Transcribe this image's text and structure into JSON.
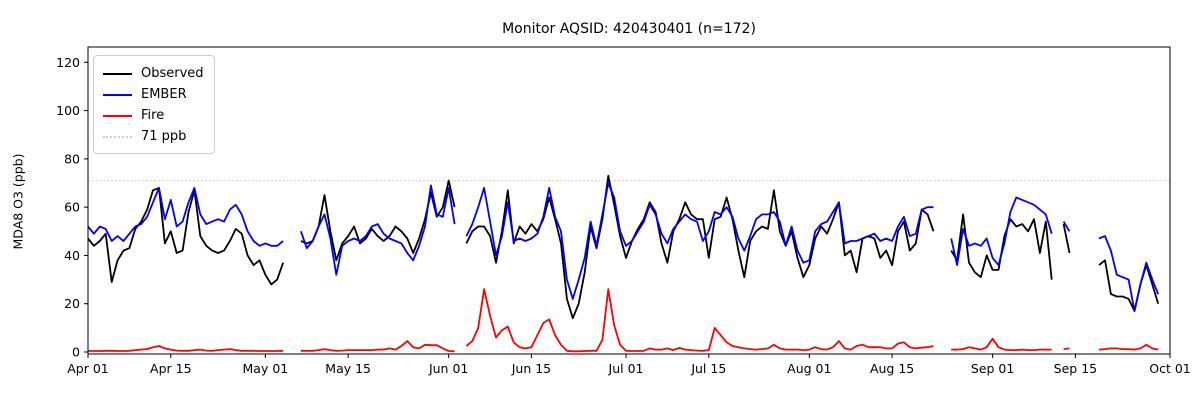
{
  "figure": {
    "title": "Monitor AQSID: 420430401 (n=172)",
    "background": "#ffffff"
  },
  "axes": {
    "ylabel": "MDA8 O3 (ppb)",
    "yticks": [
      0,
      20,
      40,
      60,
      80,
      100,
      120
    ],
    "ylim": [
      0,
      126
    ],
    "xtick_labels": [
      "Apr 01",
      "Apr 15",
      "May 01",
      "May 15",
      "Jun 01",
      "Jun 15",
      "Jul 01",
      "Jul 15",
      "Aug 01",
      "Aug 15",
      "Sep 01",
      "Sep 15",
      "Oct 01"
    ],
    "xtick_days": [
      0,
      14,
      30,
      44,
      61,
      75,
      91,
      105,
      122,
      136,
      153,
      167,
      183
    ],
    "x_domain_days": [
      0,
      183
    ],
    "spine_color": "#000000",
    "tick_label_color": "#000000"
  },
  "legend": {
    "entries": [
      {
        "label": "Observed",
        "color": "#000000",
        "style": "solid"
      },
      {
        "label": "EMBER",
        "color": "#0000ff",
        "style": "solid"
      },
      {
        "label": "Fire",
        "color": "#ff0000",
        "style": "solid"
      },
      {
        "label": "71 ppb",
        "color": "#cfcfcf",
        "style": "dotted"
      }
    ]
  },
  "chart_data": {
    "type": "line",
    "title": "Monitor AQSID: 420430401 (n=172)",
    "xlabel": "",
    "ylabel": "MDA8 O3 (ppb)",
    "x_unit": "day index, 0 = Apr 01, 182 = Sep 30, axis ends Oct 01",
    "start_date": "Apr 01",
    "end_date": "Oct 01",
    "n_shown_in_title": 172,
    "threshold": {
      "label": "71 ppb",
      "value": 71,
      "color": "#cfcfcf",
      "style": "dotted"
    },
    "missing_days": [
      "May 05",
      "May 06",
      "Jun 03",
      "Aug 23",
      "Aug 24",
      "Sep 12",
      "Sep 15",
      "Sep 16",
      "Sep 17",
      "Sep 18",
      "Sep 30"
    ],
    "series": [
      {
        "name": "Observed",
        "color": "#000000",
        "values": [
          47,
          44,
          46,
          49,
          29,
          38,
          42,
          43,
          51,
          54,
          59,
          67,
          68,
          45,
          50,
          41,
          42,
          58,
          67,
          48,
          44,
          42,
          41,
          42,
          46,
          51,
          49,
          40,
          36,
          38,
          32,
          28,
          30,
          37,
          null,
          null,
          46,
          45,
          46,
          52,
          65,
          50,
          38,
          45,
          48,
          52,
          45,
          47,
          51,
          48,
          46,
          48,
          52,
          50,
          47,
          41,
          47,
          55,
          66,
          56,
          60,
          71,
          60,
          null,
          45,
          50,
          52,
          52,
          48,
          37,
          50,
          67,
          45,
          52,
          49,
          53,
          50,
          55,
          64,
          55,
          45,
          22,
          14,
          20,
          33,
          52,
          43,
          55,
          73,
          61,
          48,
          39,
          46,
          51,
          55,
          62,
          58,
          45,
          37,
          50,
          55,
          62,
          57,
          55,
          55,
          39,
          55,
          56,
          64,
          55,
          42,
          31,
          46,
          50,
          52,
          51,
          67,
          50,
          44,
          50,
          39,
          31,
          36,
          47,
          52,
          49,
          55,
          62,
          40,
          42,
          33,
          47,
          48,
          47,
          39,
          42,
          36,
          50,
          54,
          42,
          45,
          59,
          57,
          50,
          null,
          null,
          42,
          38,
          57,
          37,
          33,
          31,
          40,
          34,
          34,
          48,
          55,
          52,
          53,
          50,
          55,
          41,
          54,
          30,
          null,
          53,
          41,
          null,
          null,
          null,
          null,
          36,
          38,
          24,
          23,
          23,
          22,
          17,
          28,
          36,
          28,
          20,
          null
        ]
      },
      {
        "name": "EMBER",
        "color": "#0000ff",
        "values": [
          52,
          49,
          52,
          51,
          46,
          48,
          46,
          49,
          52,
          53,
          56,
          62,
          68,
          55,
          63,
          52,
          54,
          62,
          68,
          57,
          53,
          54,
          55,
          54,
          59,
          61,
          57,
          50,
          46,
          44,
          45,
          44,
          44,
          46,
          null,
          null,
          50,
          43,
          46,
          52,
          57,
          47,
          32,
          44,
          46,
          47,
          46,
          48,
          52,
          53,
          49,
          47,
          46,
          45,
          41,
          38,
          44,
          52,
          69,
          57,
          56,
          68,
          53,
          null,
          48,
          53,
          60,
          68,
          54,
          40,
          48,
          62,
          46,
          47,
          46,
          47,
          49,
          56,
          68,
          56,
          50,
          30,
          22,
          30,
          39,
          54,
          44,
          57,
          70,
          64,
          50,
          44,
          46,
          50,
          54,
          61,
          57,
          49,
          45,
          51,
          54,
          57,
          55,
          54,
          46,
          50,
          58,
          57,
          60,
          56,
          47,
          42,
          48,
          55,
          57,
          57,
          58,
          54,
          44,
          52,
          42,
          37,
          38,
          50,
          53,
          54,
          58,
          62,
          45,
          46,
          46,
          47,
          48,
          49,
          46,
          47,
          46,
          52,
          56,
          48,
          49,
          59,
          60,
          60,
          null,
          null,
          47,
          36,
          51,
          44,
          45,
          44,
          47,
          39,
          36,
          45,
          58,
          64,
          63,
          62,
          61,
          59,
          57,
          49,
          null,
          54,
          50,
          null,
          null,
          null,
          null,
          47,
          48,
          42,
          32,
          31,
          30,
          17,
          28,
          37,
          30,
          24,
          null
        ]
      },
      {
        "name": "Fire",
        "color": "#ff0000",
        "values": [
          0.5,
          0.4,
          0.4,
          0.5,
          0.5,
          0.4,
          0.4,
          0.5,
          0.8,
          1.0,
          1.2,
          2.0,
          2.5,
          1.5,
          1.0,
          0.6,
          0.5,
          0.5,
          0.8,
          1.0,
          0.6,
          0.5,
          0.8,
          1.0,
          1.2,
          0.8,
          0.5,
          0.5,
          0.5,
          0.4,
          0.4,
          0.4,
          0.4,
          0.5,
          null,
          null,
          0.5,
          0.5,
          0.5,
          0.8,
          1.2,
          0.8,
          0.5,
          0.6,
          0.8,
          0.8,
          0.8,
          0.8,
          0.8,
          1.0,
          1.0,
          1.5,
          1.0,
          2.5,
          4.5,
          2.0,
          1.5,
          3.0,
          2.8,
          2.8,
          1.5,
          0.4,
          0.3,
          null,
          2.5,
          4.5,
          10,
          26,
          15,
          6,
          9,
          10.5,
          4,
          2,
          1.5,
          2,
          7,
          12,
          13.5,
          7,
          3,
          0.5,
          0.3,
          0.3,
          0.4,
          0.5,
          0.5,
          5,
          26,
          11,
          3,
          0.5,
          0.4,
          0.4,
          0.5,
          1.5,
          1.0,
          1.0,
          1.5,
          0.8,
          1.7,
          1.0,
          0.8,
          0.6,
          0.5,
          0.8,
          10,
          7,
          4,
          2.5,
          2,
          1.5,
          1.2,
          1,
          1.2,
          1.5,
          3,
          1.5,
          1,
          1,
          1,
          0.8,
          1,
          2,
          1.2,
          1,
          2,
          4.5,
          1.5,
          1,
          2.5,
          3,
          2,
          2,
          2,
          1.5,
          1.5,
          3.5,
          4,
          2,
          1.5,
          1.8,
          2,
          2.5,
          null,
          null,
          1,
          1,
          1.2,
          2,
          1.5,
          1,
          2,
          5.5,
          2,
          1,
          0.8,
          0.8,
          1,
          0.8,
          0.8,
          1,
          1,
          1,
          null,
          1.2,
          1.5,
          null,
          null,
          null,
          null,
          1,
          1.2,
          1.5,
          1.5,
          1.2,
          1.2,
          1,
          1.5,
          3,
          1.5,
          1,
          null
        ]
      }
    ],
    "legend_position": "upper left",
    "grid": false
  }
}
